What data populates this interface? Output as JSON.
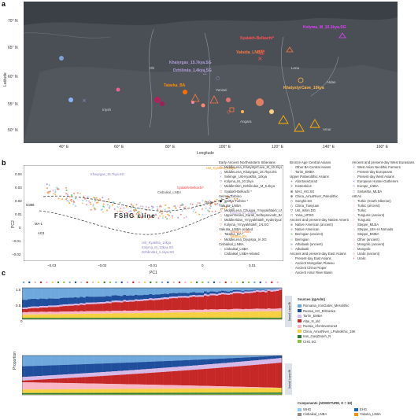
{
  "panels": {
    "a": "a",
    "b": "b",
    "c": "c"
  },
  "map": {
    "lat_axis": "Latitude",
    "lon_axis": "Longitude",
    "lat_ticks": [
      "70° N",
      "65° N",
      "60° N",
      "55° N",
      "50° N"
    ],
    "lon_ticks": [
      "40° E",
      "60° E",
      "80° E",
      "100° E",
      "120° E",
      "140° E",
      "160° E"
    ],
    "sample_labels": [
      {
        "text": "Kolyma_M_10.1kya.SG",
        "color": "#e040fb"
      },
      {
        "text": "Syalakh-Belkachi*",
        "color": "#ff3b3b"
      },
      {
        "text": "Yakutia_LNBA*",
        "color": "#ff7a3d"
      },
      {
        "text": "Khaiyrgas_15.7kya.SG",
        "color": "#b39ddb"
      },
      {
        "text": "Dzhilinda_1.4kya.SG",
        "color": "#b39ddb"
      },
      {
        "text": "KhatystyrCave_10kya",
        "color": "#ffb74d"
      },
      {
        "text": "Tatarka_BA",
        "color": "#ff9100"
      }
    ],
    "geo_labels": [
      "Ob",
      "Yenisei",
      "Lena",
      "Aldan",
      "Amur",
      "Angara",
      "Irtysh"
    ]
  },
  "pca": {
    "xlabel": "PC1",
    "ylabel": "PC2",
    "xticks": [
      "−0.03",
      "−0.02",
      "−0.01",
      "0",
      "0.01"
    ],
    "yticks": [
      "0.04",
      "0.03",
      "0.02",
      "0.01",
      "0",
      "−0.01",
      "−0.02"
    ],
    "cline_label": "FSHG cline",
    "point_labels": [
      {
        "text": "Khaiyrgas_15.7kya.SG",
        "color": "#8e7cc3"
      },
      {
        "text": "Ust_Kyakhta_14kya",
        "color": "#ff9100"
      },
      {
        "text": "Syalakh-Belkachi*",
        "color": "#ff3b3b"
      },
      {
        "text": "Cisbaikal_LNBA",
        "color": "#555555"
      },
      {
        "text": "Kolyma_M_10kya",
        "color": "#b39ddb"
      },
      {
        "text": "Yakutia_LNBA",
        "color": "#ff7a3d"
      },
      {
        "text": "Tatarka_BA",
        "color": "#ff9100"
      },
      {
        "text": "Ust_Kyakhta_14kya",
        "color": "#8e7cc3"
      },
      {
        "text": "Kolyma_M_10kya.SG",
        "color": "#8e7cc3"
      },
      {
        "text": "Dzhilinda1_1.4kya.SG",
        "color": "#8e7cc3"
      },
      {
        "text": "MA-1",
        "color": "#222222"
      },
      {
        "text": "AG3",
        "color": "#222222"
      },
      {
        "text": "I3388",
        "color": "#222222"
      },
      {
        "text": "I3545",
        "color": "#222222"
      }
    ]
  },
  "legend": {
    "col1": [
      {
        "kind": "head",
        "text": "Early Ancient Northeastern Siberians"
      },
      {
        "kind": "item",
        "text": "MiddleLena_KhatystyrCave_M_10.2kya *",
        "marker": "◇",
        "color": "#8e7cc3"
      },
      {
        "kind": "item",
        "text": "MiddleLena_Khaiyrgas_16.7kya.SG",
        "marker": "△",
        "color": "#8e7cc3"
      },
      {
        "kind": "item",
        "text": "Selenge_Ust-Kyakhta_14kya",
        "marker": "×",
        "color": "#8e7cc3"
      },
      {
        "kind": "item",
        "text": "Kolyma_M_10.1kya",
        "marker": "▽",
        "color": "#8e7cc3"
      },
      {
        "kind": "item",
        "text": "MiddleVitim_Dzhilinda1_M_6.4kya",
        "marker": "○",
        "color": "#8e7cc3"
      },
      {
        "kind": "item",
        "text": "Syalakh-Belkachi *",
        "marker": "□",
        "color": "#ff3b3b"
      },
      {
        "kind": "head",
        "text": "Seima-Turbino"
      },
      {
        "kind": "item",
        "text": "Seima-Turbino *",
        "marker": "◆",
        "color": "#111111"
      },
      {
        "kind": "head",
        "text": "Yakutia_LNBA"
      },
      {
        "kind": "item",
        "text": "MiddleLena_Chuiuya_Ymyyakhtakh_LN *",
        "marker": "△",
        "color": "#ff7a3d"
      },
      {
        "kind": "item",
        "text": "UpperYenisei_Karak_Neftepnovod2_BA.SG",
        "marker": "◇",
        "color": "#ff7a3d"
      },
      {
        "kind": "item",
        "text": "MiddleAldan_Ymyyakhtakh_Kyderdyuzhen_LN.SG",
        "marker": "□",
        "color": "#ff7a3d"
      },
      {
        "kind": "item",
        "text": "Kolyma_Ymyyakhtakh_LN.SG",
        "marker": "▽",
        "color": "#ff7a3d"
      },
      {
        "kind": "head",
        "text": "Yakutia_LNBA-related"
      },
      {
        "kind": "item",
        "text": "Tatarka_BA *",
        "marker": "○",
        "color": "#ff9100"
      },
      {
        "kind": "item",
        "text": "MiddleLena_Dyupsya_IA.SG",
        "marker": "×",
        "color": "#ff9100"
      },
      {
        "kind": "head",
        "text": "Cisbaikal_LNBA"
      },
      {
        "kind": "item",
        "text": "Cisbaikal_LNBA",
        "marker": "○",
        "color": "#999999"
      },
      {
        "kind": "item",
        "text": "Cisbaikal_LNBA-related",
        "marker": "○",
        "color": "#bbbbbb"
      }
    ],
    "col2": [
      {
        "kind": "head",
        "text": "Bronze Age Central Asians"
      },
      {
        "kind": "item",
        "text": "Other BA Central Asians",
        "marker": "○",
        "color": "#c9a0dc"
      },
      {
        "kind": "item",
        "text": "Tarim_EMBA",
        "marker": "○",
        "color": "#c9a0dc"
      },
      {
        "kind": "head",
        "text": "Upper Palaeolithic Asians"
      },
      {
        "kind": "item",
        "text": "AfontovaGora3",
        "marker": "+",
        "color": "#444444"
      },
      {
        "kind": "item",
        "text": "Kostenki14",
        "marker": "×",
        "color": "#444444"
      },
      {
        "kind": "item",
        "text": "MA1_HG.SG",
        "marker": "⊗",
        "color": "#444444"
      },
      {
        "kind": "item",
        "text": "China_AmurRiver_Paleolithic",
        "marker": "⊕",
        "color": "#444444"
      },
      {
        "kind": "item",
        "text": "Sunghir.SG",
        "marker": "◇",
        "color": "#444444"
      },
      {
        "kind": "item",
        "text": "China_Tianyuan",
        "marker": "◇",
        "color": "#444444"
      },
      {
        "kind": "item",
        "text": "Ust_Ishim.DG",
        "marker": "▽",
        "color": "#444444"
      },
      {
        "kind": "item",
        "text": "Yana_UPSG",
        "marker": "□",
        "color": "#444444"
      },
      {
        "kind": "head",
        "text": "Ancient and present-day Native Americans"
      },
      {
        "kind": "item",
        "text": "Native American (ancient)",
        "marker": "■",
        "color": "#9e9e9e"
      },
      {
        "kind": "item",
        "text": "Native American",
        "marker": "■",
        "color": "#bdbdbd"
      },
      {
        "kind": "item",
        "text": "Beringian (ancient)",
        "marker": "■",
        "color": "#a5d6a7"
      },
      {
        "kind": "item",
        "text": "Beringian",
        "marker": "■",
        "color": "#c8e6c9"
      },
      {
        "kind": "item",
        "text": "Athabask (ancient)",
        "marker": "■",
        "color": "#b0bec5"
      },
      {
        "kind": "item",
        "text": "Athabask",
        "marker": "■",
        "color": "#cfd8dc"
      },
      {
        "kind": "head",
        "text": "Ancient and present-day East Asians"
      },
      {
        "kind": "item",
        "text": "Present-day East Asians",
        "marker": "○",
        "color": "#bdbdbd"
      },
      {
        "kind": "item",
        "text": "Ancient Mongolian Plateau",
        "marker": "○",
        "color": "#bdbdbd"
      },
      {
        "kind": "item",
        "text": "Ancient China Proper",
        "marker": "○",
        "color": "#bdbdbd"
      },
      {
        "kind": "item",
        "text": "Ancient Amur River Basin",
        "marker": "○",
        "color": "#bdbdbd"
      }
    ],
    "col3": [
      {
        "kind": "head",
        "text": "Ancient and present-day West Eurasians"
      },
      {
        "kind": "item",
        "text": "West Asian Neolithic Farmers",
        "marker": "×",
        "color": "#9575cd"
      },
      {
        "kind": "item",
        "text": "Present-day Europeans",
        "marker": "○",
        "color": "#bdbdbd"
      },
      {
        "kind": "item",
        "text": "Present-day West Asians",
        "marker": "○",
        "color": "#bdbdbd"
      },
      {
        "kind": "item",
        "text": "European Hunter-Gatherers",
        "marker": "×",
        "color": "#7e57c2"
      },
      {
        "kind": "item",
        "text": "Europe_LNBA",
        "marker": "□",
        "color": "#9575cd"
      },
      {
        "kind": "item",
        "text": "Sintashta_MLBA",
        "marker": "□",
        "color": "#9575cd"
      },
      {
        "kind": "head",
        "text": "AIEAs"
      },
      {
        "kind": "item",
        "text": "Turkic (South Siberian)",
        "marker": "○",
        "color": "#ef9a9a"
      },
      {
        "kind": "item",
        "text": "Turkic (ancient)",
        "marker": "○",
        "color": "#ef9a9a"
      },
      {
        "kind": "item",
        "text": "Turkic",
        "marker": "○",
        "color": "#ef9a9a"
      },
      {
        "kind": "item",
        "text": "Tungusic (ancient)",
        "marker": "○",
        "color": "#ef9a9a"
      },
      {
        "kind": "item",
        "text": "Tungusic",
        "marker": "○",
        "color": "#ef9a9a"
      },
      {
        "kind": "item",
        "text": "Steppe_MLBA",
        "marker": "○",
        "color": "#ef9a9a"
      },
      {
        "kind": "item",
        "text": "Steppe_LBA-IA Nomads",
        "marker": "○",
        "color": "#ef9a9a"
      },
      {
        "kind": "item",
        "text": "Steppe_EMBA",
        "marker": "○",
        "color": "#ef9a9a"
      },
      {
        "kind": "item",
        "text": "Other (ancient)",
        "marker": "○",
        "color": "#ef9a9a"
      },
      {
        "kind": "item",
        "text": "Mongolic (ancient)",
        "marker": "○",
        "color": "#ef9a9a"
      },
      {
        "kind": "item",
        "text": "Mongolic",
        "marker": "○",
        "color": "#ef9a9a"
      },
      {
        "kind": "item",
        "text": "Uralic (ancient)",
        "marker": "○",
        "color": "#e53935"
      },
      {
        "kind": "item",
        "text": "Uralic",
        "marker": "+",
        "color": "#e53935"
      }
    ]
  },
  "bars": {
    "ylabel": "Proportion",
    "yticks": [
      "1.0",
      "0.5",
      "0"
    ],
    "panel1_tag": "qpAdm (data)",
    "panel2_tag": "qpAdm (data)",
    "sources_title": "Sources (qpAdm)",
    "sources": [
      {
        "label": "Romania_IronGates_Mesolithic",
        "color": "#6fa8dc"
      },
      {
        "label": "Russia_HG_Elshanka",
        "color": "#1f4e9c"
      },
      {
        "label": "Tarim_EMBA",
        "color": "#d7b9e8"
      },
      {
        "label": "Altai_N_old",
        "color": "#c62828"
      },
      {
        "label": "Russia_AfontovaGora3",
        "color": "#f8b6c6"
      },
      {
        "label": "China_AmurRiver_LPaleolithic_19K",
        "color": "#f5d142"
      },
      {
        "label": "Iran_GanjDareh_N",
        "color": "#2e7d32"
      },
      {
        "label": "CHG.SG",
        "color": "#8bc34a"
      }
    ],
    "components_title": "Components (ADMIXTURE, K = 18)",
    "components": [
      {
        "label": "WHG",
        "color": "#90caf9"
      },
      {
        "label": "EHG",
        "color": "#1565c0"
      },
      {
        "label": "Cisbaikal_LNBA",
        "color": "#8d8d8d"
      },
      {
        "label": "Yakutia_LNBA",
        "color": "#ff9100"
      }
    ]
  }
}
